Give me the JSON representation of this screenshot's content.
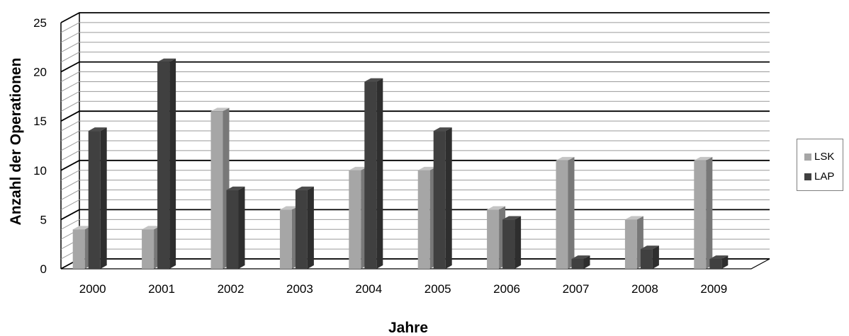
{
  "chart_data": {
    "type": "bar",
    "categories": [
      "2000",
      "2001",
      "2002",
      "2003",
      "2004",
      "2005",
      "2006",
      "2007",
      "2008",
      "2009"
    ],
    "series": [
      {
        "name": "LSK",
        "values": [
          4,
          4,
          16,
          6,
          10,
          10,
          6,
          11,
          5,
          11
        ],
        "color": "#a6a6a6"
      },
      {
        "name": "LAP",
        "values": [
          14,
          21,
          8,
          8,
          19,
          14,
          5,
          1,
          2,
          1
        ],
        "color": "#404040"
      }
    ],
    "title": "",
    "xlabel": "Jahre",
    "ylabel": "Anzahl der Operationen",
    "ylim": [
      0,
      25
    ],
    "yticks": [
      0,
      5,
      10,
      15,
      20,
      25
    ],
    "grid": true,
    "legend_position": "right",
    "style": "3d-column"
  }
}
